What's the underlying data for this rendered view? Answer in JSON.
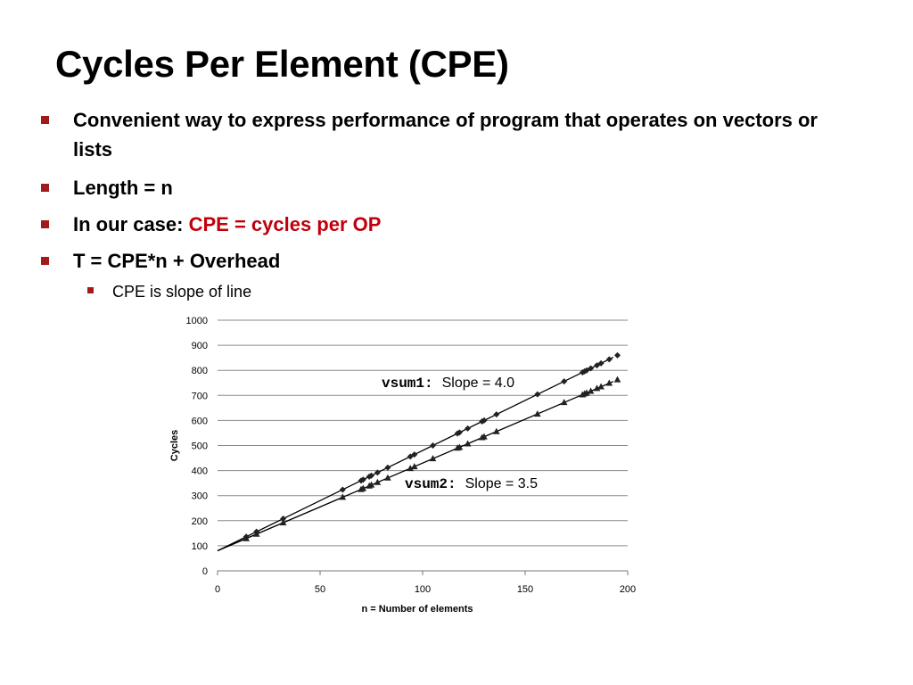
{
  "slide": {
    "title": "Cycles Per Element (CPE)",
    "bullets": [
      {
        "text": "Convenient way to express performance of program that operates on vectors or lists"
      },
      {
        "text": "Length = n"
      },
      {
        "prefix": "In our case: ",
        "highlight": "CPE = cycles per OP"
      },
      {
        "text": "T = CPE*n + Overhead"
      }
    ],
    "sub_bullet": "CPE is slope of line"
  },
  "colors": {
    "bullet_marker": "#a11b1b",
    "highlight": "#c0000c"
  },
  "chart_data": {
    "type": "scatter",
    "xlabel": "n = Number of elements",
    "ylabel": "Cycles",
    "xlim": [
      0,
      200
    ],
    "ylim": [
      0,
      1000
    ],
    "xticks": [
      0,
      50,
      100,
      150,
      200
    ],
    "yticks": [
      0,
      100,
      200,
      300,
      400,
      500,
      600,
      700,
      800,
      900,
      1000
    ],
    "grid": "horizontal",
    "series": [
      {
        "name": "vsum1",
        "marker": "diamond",
        "x": [
          14,
          19,
          32,
          61,
          70,
          71,
          74,
          75,
          78,
          83,
          94,
          96,
          105,
          117,
          118,
          122,
          129,
          130,
          136,
          156,
          169,
          178,
          179,
          180,
          182,
          185,
          187,
          191,
          195
        ],
        "y": [
          136,
          156,
          208,
          324,
          360,
          364,
          376,
          380,
          392,
          412,
          456,
          464,
          500,
          548,
          552,
          568,
          596,
          600,
          624,
          704,
          756,
          792,
          796,
          800,
          808,
          820,
          828,
          844,
          860
        ],
        "fit": {
          "slope": 4.0,
          "intercept": 80
        }
      },
      {
        "name": "vsum2",
        "marker": "triangle",
        "x": [
          14,
          19,
          32,
          61,
          70,
          71,
          74,
          75,
          78,
          83,
          94,
          96,
          105,
          117,
          118,
          122,
          129,
          130,
          136,
          156,
          169,
          178,
          179,
          180,
          182,
          185,
          187,
          191,
          195
        ],
        "y": [
          129,
          147,
          192,
          294,
          325,
          329,
          339,
          343,
          353,
          371,
          409,
          416,
          448,
          490,
          493,
          507,
          532,
          535,
          556,
          626,
          672,
          703,
          707,
          710,
          717,
          728,
          735,
          749,
          763
        ],
        "fit": {
          "slope": 3.5,
          "intercept": 80
        }
      }
    ],
    "annotations": [
      {
        "series": "vsum1",
        "code": "vsum1:",
        "label": "Slope = 4.0"
      },
      {
        "series": "vsum2",
        "code": "vsum2:",
        "label": "Slope = 3.5"
      }
    ]
  }
}
